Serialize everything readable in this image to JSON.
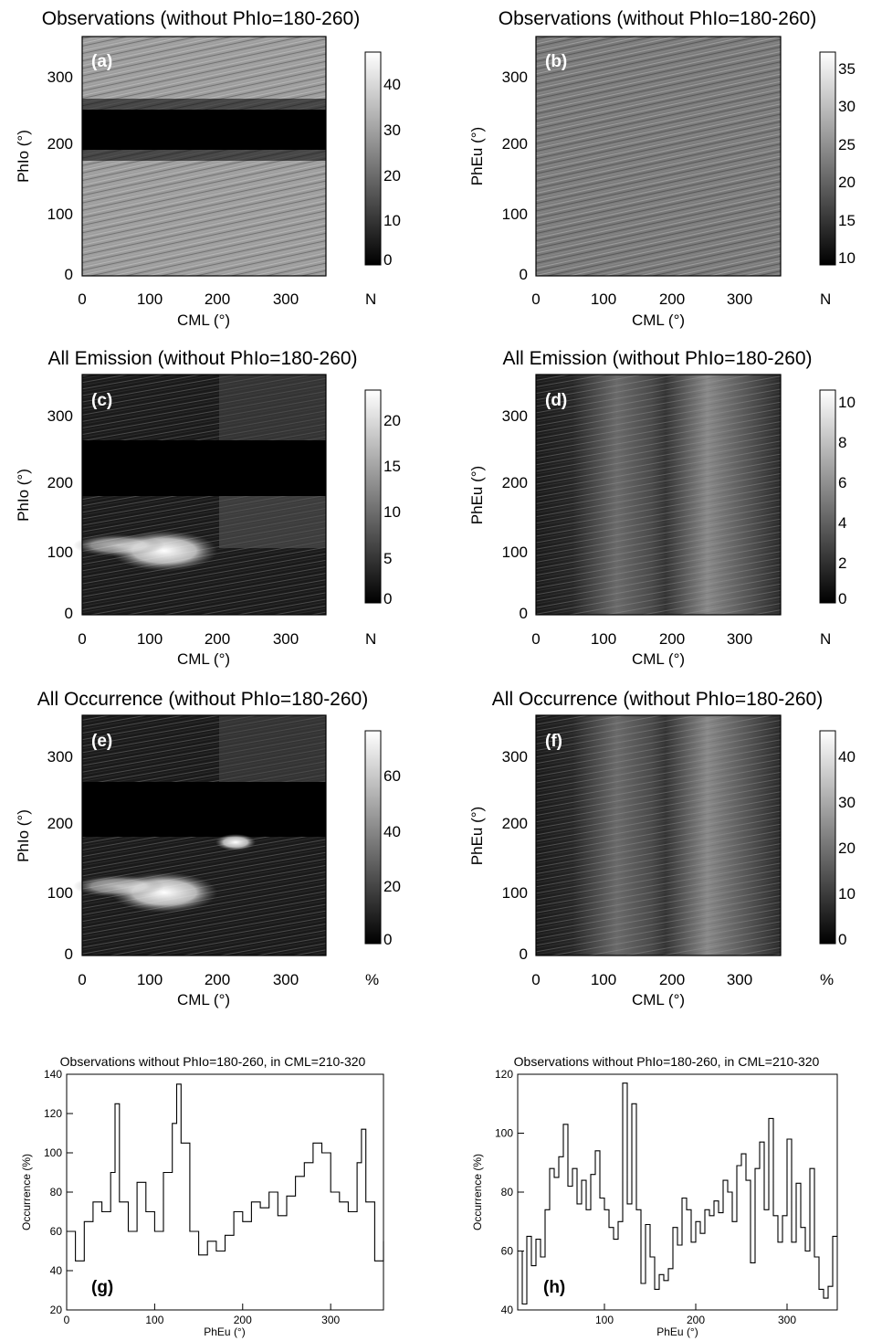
{
  "figure": {
    "panels": [
      {
        "label": "(a)",
        "title": "Observations (without PhIo=180-260)",
        "xlabel": "CML (°)",
        "ylabel": "PhIo (°)",
        "unit": "N",
        "colorbar_ticks": [
          "0",
          "10",
          "20",
          "30",
          "40"
        ]
      },
      {
        "label": "(b)",
        "title": "Observations (without PhIo=180-260)",
        "xlabel": "CML (°)",
        "ylabel": "PhEu (°)",
        "unit": "N",
        "colorbar_ticks": [
          "10",
          "15",
          "20",
          "25",
          "30",
          "35"
        ]
      },
      {
        "label": "(c)",
        "title": "All Emission (without PhIo=180-260)",
        "xlabel": "CML (°)",
        "ylabel": "PhIo (°)",
        "unit": "N",
        "colorbar_ticks": [
          "0",
          "5",
          "10",
          "15",
          "20"
        ]
      },
      {
        "label": "(d)",
        "title": "All Emission (without PhIo=180-260)",
        "xlabel": "CML (°)",
        "ylabel": "PhEu (°)",
        "unit": "N",
        "colorbar_ticks": [
          "0",
          "2",
          "4",
          "6",
          "8",
          "10"
        ]
      },
      {
        "label": "(e)",
        "title": "All Occurrence (without PhIo=180-260)",
        "xlabel": "CML (°)",
        "ylabel": "PhIo (°)",
        "unit": "%",
        "colorbar_ticks": [
          "0",
          "20",
          "40",
          "60"
        ]
      },
      {
        "label": "(f)",
        "title": "All Occurrence (without PhIo=180-260)",
        "xlabel": "CML (°)",
        "ylabel": "PhEu (°)",
        "unit": "%",
        "colorbar_ticks": [
          "0",
          "10",
          "20",
          "30",
          "40"
        ]
      },
      {
        "label": "(g)",
        "title": "Observations without PhIo=180-260, in CML=210-320",
        "xlabel": "PhEu (°)",
        "ylabel": "Occurrence (%)"
      },
      {
        "label": "(h)",
        "title": "Observations without PhIo=180-260, in CML=210-320",
        "xlabel": "PhEu (°)",
        "ylabel": "Occurrence (%)"
      }
    ],
    "heatmap_x_ticks": [
      "0",
      "100",
      "200",
      "300"
    ],
    "heatmap_y_ticks": [
      "0",
      "100",
      "200",
      "300"
    ]
  },
  "chart_data": [
    {
      "panel": "a",
      "type": "heatmap",
      "x_range": [
        0,
        360
      ],
      "y_range": [
        0,
        360
      ],
      "z_range": [
        0,
        47
      ],
      "colormap": "grayscale",
      "xlabel": "CML (°)",
      "ylabel": "PhIo (°)",
      "zlabel": "N",
      "description_values": {
        "excluded_band_PhIo": [
          180,
          260
        ],
        "typical_value_outside_band": 30
      }
    },
    {
      "panel": "b",
      "type": "heatmap",
      "x_range": [
        0,
        360
      ],
      "y_range": [
        0,
        360
      ],
      "z_range": [
        9,
        37
      ],
      "colormap": "grayscale",
      "xlabel": "CML (°)",
      "ylabel": "PhEu (°)",
      "zlabel": "N",
      "description_values": {
        "typical_value": 22
      }
    },
    {
      "panel": "c",
      "type": "heatmap",
      "x_range": [
        0,
        360
      ],
      "y_range": [
        0,
        360
      ],
      "z_range": [
        0,
        23
      ],
      "colormap": "grayscale",
      "xlabel": "CML (°)",
      "ylabel": "PhIo (°)",
      "zlabel": "N",
      "description_values": {
        "excluded_band_PhIo": [
          180,
          260
        ],
        "hotspot_CML": [
          80,
          200
        ],
        "hotspot_PhIo": [
          60,
          110
        ]
      }
    },
    {
      "panel": "d",
      "type": "heatmap",
      "x_range": [
        0,
        360
      ],
      "y_range": [
        0,
        360
      ],
      "z_range": [
        0,
        10.5
      ],
      "colormap": "grayscale",
      "xlabel": "CML (°)",
      "ylabel": "PhEu (°)",
      "zlabel": "N",
      "description_values": {
        "bright_CML_bands": [
          [
            120,
            180
          ],
          [
            210,
            300
          ]
        ]
      }
    },
    {
      "panel": "e",
      "type": "heatmap",
      "x_range": [
        0,
        360
      ],
      "y_range": [
        0,
        360
      ],
      "z_range": [
        0,
        76
      ],
      "colormap": "grayscale",
      "xlabel": "CML (°)",
      "ylabel": "PhIo (°)",
      "zlabel": "%",
      "description_values": {
        "excluded_band_PhIo": [
          180,
          260
        ],
        "hotspot_CML": [
          80,
          200
        ],
        "hotspot_PhIo": [
          60,
          110
        ]
      }
    },
    {
      "panel": "f",
      "type": "heatmap",
      "x_range": [
        0,
        360
      ],
      "y_range": [
        0,
        360
      ],
      "z_range": [
        0,
        47
      ],
      "colormap": "grayscale",
      "xlabel": "CML (°)",
      "ylabel": "PhEu (°)",
      "zlabel": "%",
      "description_values": {
        "bright_CML_bands": [
          [
            120,
            180
          ],
          [
            210,
            300
          ]
        ]
      }
    },
    {
      "panel": "g",
      "type": "line",
      "step": true,
      "xlim": [
        0,
        360
      ],
      "ylim": [
        20,
        140
      ],
      "xticks": [
        0,
        100,
        200,
        300
      ],
      "yticks": [
        20,
        40,
        60,
        80,
        100,
        120,
        140
      ],
      "xlabel": "PhEu (°)",
      "ylabel": "Occurrence (%)",
      "x": [
        0,
        10,
        20,
        30,
        40,
        50,
        55,
        60,
        70,
        80,
        90,
        100,
        110,
        120,
        125,
        130,
        140,
        150,
        160,
        170,
        180,
        190,
        200,
        210,
        220,
        230,
        240,
        250,
        260,
        270,
        280,
        290,
        300,
        310,
        320,
        330,
        335,
        340,
        350,
        360
      ],
      "values": [
        60,
        45,
        65,
        75,
        70,
        90,
        125,
        75,
        60,
        85,
        70,
        60,
        90,
        115,
        135,
        105,
        60,
        48,
        55,
        50,
        58,
        70,
        65,
        75,
        72,
        80,
        68,
        78,
        88,
        95,
        105,
        100,
        80,
        75,
        70,
        95,
        112,
        75,
        45,
        55
      ]
    },
    {
      "panel": "h",
      "type": "line",
      "step": true,
      "xlim": [
        5,
        355
      ],
      "ylim": [
        40,
        120
      ],
      "xticks": [
        100,
        200,
        300
      ],
      "yticks": [
        40,
        60,
        80,
        100,
        120
      ],
      "xlabel": "PhEu (°)",
      "ylabel": "Occurrence (%)",
      "x": [
        5,
        10,
        15,
        20,
        25,
        30,
        35,
        40,
        45,
        50,
        55,
        60,
        65,
        70,
        75,
        80,
        85,
        90,
        95,
        100,
        105,
        110,
        115,
        120,
        125,
        130,
        135,
        140,
        145,
        150,
        155,
        160,
        165,
        170,
        175,
        180,
        185,
        190,
        195,
        200,
        205,
        210,
        215,
        220,
        225,
        230,
        235,
        240,
        245,
        250,
        255,
        260,
        265,
        270,
        275,
        280,
        285,
        290,
        295,
        300,
        305,
        310,
        315,
        320,
        325,
        330,
        335,
        340,
        345,
        350
      ],
      "values": [
        60,
        42,
        65,
        55,
        64,
        58,
        74,
        88,
        85,
        92,
        103,
        82,
        88,
        76,
        84,
        74,
        86,
        94,
        78,
        74,
        68,
        64,
        70,
        117,
        76,
        110,
        74,
        49,
        69,
        58,
        47,
        52,
        50,
        54,
        68,
        62,
        78,
        74,
        63,
        70,
        66,
        74,
        72,
        77,
        73,
        84,
        80,
        70,
        89,
        93,
        84,
        56,
        88,
        97,
        74,
        105,
        72,
        63,
        72,
        98,
        63,
        83,
        68,
        60,
        88,
        58,
        47,
        44,
        48,
        65
      ]
    }
  ]
}
